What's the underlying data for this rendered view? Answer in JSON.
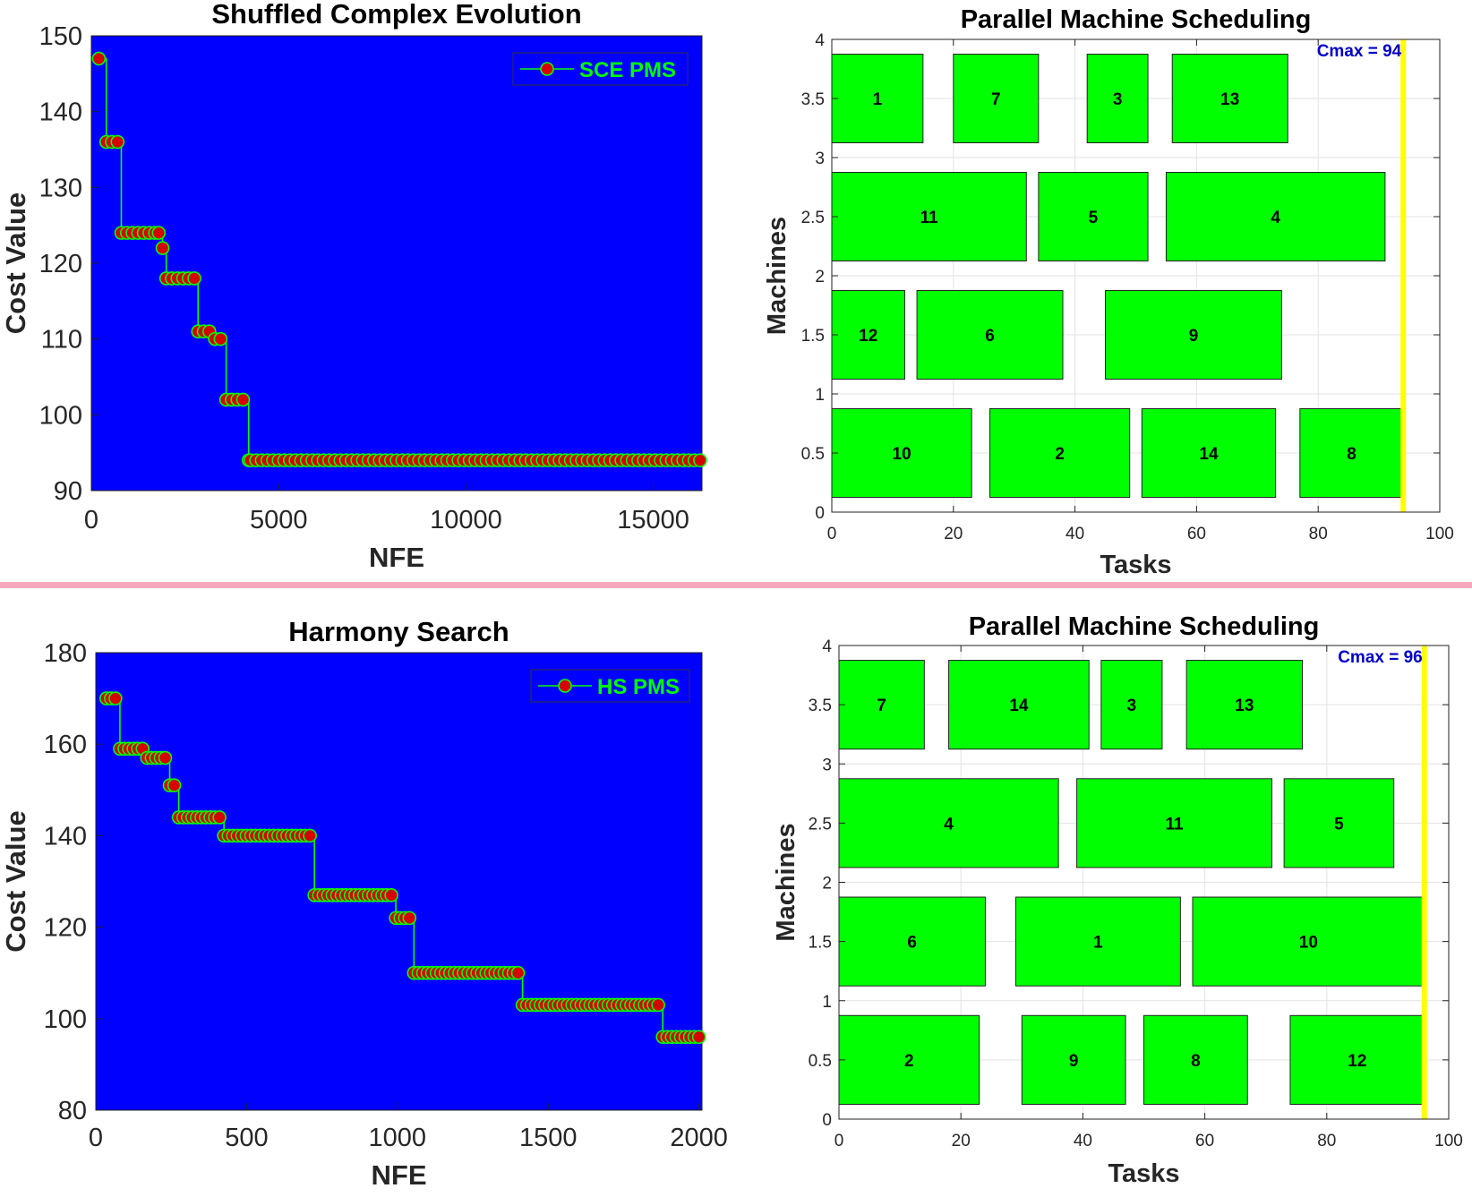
{
  "colors": {
    "convergence_bg": "#0000ff",
    "convergence_line": "#00ff00",
    "marker_face": "#d50000",
    "marker_edge": "#00ff00",
    "legend_text": "#00ff00",
    "legend_border": "#333333",
    "task_fill": "#00ff00",
    "task_stroke": "#222222",
    "cmax_line": "#ffff00",
    "cmax_text": "#0000c8",
    "separator": "#f4a7bd",
    "grid": "#e3e3e3"
  },
  "chart_data": [
    {
      "type": "line",
      "title": "Shuffled Complex Evolution",
      "xlabel": "NFE",
      "ylabel": "Cost Value",
      "xlim": [
        0,
        16300
      ],
      "ylim": [
        90,
        150
      ],
      "xticks": [
        0,
        5000,
        10000,
        15000
      ],
      "yticks": [
        90,
        100,
        110,
        120,
        130,
        140,
        150
      ],
      "grid": false,
      "legend_position": "top-right",
      "series": [
        {
          "name": "SCE PMS",
          "x": [
            200,
            400,
            550,
            700,
            800,
            950,
            1100,
            1250,
            1400,
            1550,
            1700,
            1800,
            1900,
            2000,
            2150,
            2300,
            2450,
            2600,
            2750,
            2850,
            3000,
            3150,
            3300,
            3450,
            3600,
            3750,
            3900,
            4050,
            4200,
            4250,
            4400,
            4550,
            4700,
            4850,
            5000,
            5150,
            5300,
            5450,
            5600,
            5750,
            5900,
            6050,
            6200,
            6350,
            6500,
            6650,
            6800,
            6950,
            7100,
            7250,
            7400,
            7550,
            7700,
            7850,
            8000,
            8150,
            8300,
            8450,
            8600,
            8750,
            8900,
            9050,
            9200,
            9350,
            9500,
            9650,
            9800,
            9950,
            10100,
            10250,
            10400,
            10550,
            10700,
            10850,
            11000,
            11150,
            11300,
            11450,
            11600,
            11750,
            11900,
            12050,
            12200,
            12350,
            12500,
            12650,
            12800,
            12950,
            13100,
            13250,
            13400,
            13550,
            13700,
            13850,
            14000,
            14150,
            14300,
            14450,
            14600,
            14750,
            14900,
            15050,
            15200,
            15350,
            15500,
            15650,
            15800,
            15950,
            16100,
            16250
          ],
          "values": [
            147,
            136,
            136,
            136,
            124,
            124,
            124,
            124,
            124,
            124,
            124,
            124,
            122,
            118,
            118,
            118,
            118,
            118,
            118,
            111,
            111,
            111,
            110,
            110,
            102,
            102,
            102,
            102,
            94,
            94,
            94,
            94,
            94,
            94,
            94,
            94,
            94,
            94,
            94,
            94,
            94,
            94,
            94,
            94,
            94,
            94,
            94,
            94,
            94,
            94,
            94,
            94,
            94,
            94,
            94,
            94,
            94,
            94,
            94,
            94,
            94,
            94,
            94,
            94,
            94,
            94,
            94,
            94,
            94,
            94,
            94,
            94,
            94,
            94,
            94,
            94,
            94,
            94,
            94,
            94,
            94,
            94,
            94,
            94,
            94,
            94,
            94,
            94,
            94,
            94,
            94,
            94,
            94,
            94,
            94,
            94,
            94,
            94,
            94,
            94,
            94,
            94,
            94,
            94,
            94,
            94,
            94,
            94,
            94,
            94
          ]
        }
      ]
    },
    {
      "type": "gantt",
      "title": "Parallel Machine Scheduling",
      "xlabel": "Tasks",
      "ylabel": "Machines",
      "xlim": [
        0,
        100
      ],
      "ylim": [
        0,
        4
      ],
      "xticks": [
        0,
        20,
        40,
        60,
        80,
        100
      ],
      "yticks": [
        0,
        0.5,
        1,
        1.5,
        2,
        2.5,
        3,
        3.5,
        4
      ],
      "grid": true,
      "cmax": 94,
      "cmax_label": "Cmax = 94",
      "tasks": [
        {
          "label": "1",
          "machine": 4,
          "start": 0,
          "end": 15
        },
        {
          "label": "7",
          "machine": 4,
          "start": 20,
          "end": 34
        },
        {
          "label": "3",
          "machine": 4,
          "start": 42,
          "end": 52
        },
        {
          "label": "13",
          "machine": 4,
          "start": 56,
          "end": 75
        },
        {
          "label": "11",
          "machine": 3,
          "start": 0,
          "end": 32
        },
        {
          "label": "5",
          "machine": 3,
          "start": 34,
          "end": 52
        },
        {
          "label": "4",
          "machine": 3,
          "start": 55,
          "end": 91
        },
        {
          "label": "12",
          "machine": 2,
          "start": 0,
          "end": 12
        },
        {
          "label": "6",
          "machine": 2,
          "start": 14,
          "end": 38
        },
        {
          "label": "9",
          "machine": 2,
          "start": 45,
          "end": 74
        },
        {
          "label": "10",
          "machine": 1,
          "start": 0,
          "end": 23
        },
        {
          "label": "2",
          "machine": 1,
          "start": 26,
          "end": 49
        },
        {
          "label": "14",
          "machine": 1,
          "start": 51,
          "end": 73
        },
        {
          "label": "8",
          "machine": 1,
          "start": 77,
          "end": 94
        }
      ]
    },
    {
      "type": "line",
      "title": "Harmony Search",
      "xlabel": "NFE",
      "ylabel": "Cost Value",
      "xlim": [
        0,
        2010
      ],
      "ylim": [
        80,
        180
      ],
      "xticks": [
        0,
        500,
        1000,
        1500,
        2000
      ],
      "yticks": [
        80,
        100,
        120,
        140,
        160,
        180
      ],
      "grid": false,
      "legend_position": "top-right",
      "series": [
        {
          "name": "HS PMS",
          "x": [
            35,
            50,
            65,
            80,
            95,
            110,
            125,
            140,
            155,
            170,
            185,
            200,
            215,
            230,
            245,
            260,
            275,
            290,
            305,
            320,
            335,
            350,
            365,
            380,
            395,
            410,
            425,
            440,
            455,
            470,
            485,
            500,
            515,
            530,
            545,
            560,
            575,
            590,
            605,
            620,
            635,
            650,
            665,
            680,
            695,
            710,
            725,
            740,
            755,
            770,
            785,
            800,
            815,
            830,
            845,
            860,
            875,
            890,
            905,
            920,
            935,
            950,
            965,
            980,
            995,
            1010,
            1025,
            1040,
            1055,
            1070,
            1085,
            1100,
            1115,
            1130,
            1145,
            1160,
            1175,
            1190,
            1205,
            1220,
            1235,
            1250,
            1265,
            1280,
            1295,
            1310,
            1325,
            1340,
            1355,
            1370,
            1385,
            1400,
            1415,
            1430,
            1445,
            1460,
            1475,
            1490,
            1505,
            1520,
            1535,
            1550,
            1565,
            1580,
            1595,
            1610,
            1625,
            1640,
            1655,
            1670,
            1685,
            1700,
            1715,
            1730,
            1745,
            1760,
            1775,
            1790,
            1805,
            1820,
            1835,
            1850,
            1865,
            1880,
            1895,
            1910,
            1925,
            1940,
            1955,
            1970,
            1985,
            2000
          ],
          "values": [
            170,
            170,
            170,
            159,
            159,
            159,
            159,
            159,
            159,
            157,
            157,
            157,
            157,
            157,
            151,
            151,
            144,
            144,
            144,
            144,
            144,
            144,
            144,
            144,
            144,
            144,
            140,
            140,
            140,
            140,
            140,
            140,
            140,
            140,
            140,
            140,
            140,
            140,
            140,
            140,
            140,
            140,
            140,
            140,
            140,
            140,
            127,
            127,
            127,
            127,
            127,
            127,
            127,
            127,
            127,
            127,
            127,
            127,
            127,
            127,
            127,
            127,
            127,
            127,
            122,
            122,
            122,
            122,
            110,
            110,
            110,
            110,
            110,
            110,
            110,
            110,
            110,
            110,
            110,
            110,
            110,
            110,
            110,
            110,
            110,
            110,
            110,
            110,
            110,
            110,
            110,
            110,
            103,
            103,
            103,
            103,
            103,
            103,
            103,
            103,
            103,
            103,
            103,
            103,
            103,
            103,
            103,
            103,
            103,
            103,
            103,
            103,
            103,
            103,
            103,
            103,
            103,
            103,
            103,
            103,
            103,
            103,
            103,
            96,
            96,
            96,
            96,
            96,
            96,
            96,
            96,
            96
          ]
        }
      ]
    },
    {
      "type": "gantt",
      "title": "Parallel Machine Scheduling",
      "xlabel": "Tasks",
      "ylabel": "Machines",
      "xlim": [
        0,
        100
      ],
      "ylim": [
        0,
        4
      ],
      "xticks": [
        0,
        20,
        40,
        60,
        80,
        100
      ],
      "yticks": [
        0,
        0.5,
        1,
        1.5,
        2,
        2.5,
        3,
        3.5,
        4
      ],
      "grid": true,
      "cmax": 96,
      "cmax_label": "Cmax = 96",
      "tasks": [
        {
          "label": "7",
          "machine": 4,
          "start": 0,
          "end": 14
        },
        {
          "label": "14",
          "machine": 4,
          "start": 18,
          "end": 41
        },
        {
          "label": "3",
          "machine": 4,
          "start": 43,
          "end": 53
        },
        {
          "label": "13",
          "machine": 4,
          "start": 57,
          "end": 76
        },
        {
          "label": "4",
          "machine": 3,
          "start": 0,
          "end": 36
        },
        {
          "label": "11",
          "machine": 3,
          "start": 39,
          "end": 71
        },
        {
          "label": "5",
          "machine": 3,
          "start": 73,
          "end": 91
        },
        {
          "label": "6",
          "machine": 2,
          "start": 0,
          "end": 24
        },
        {
          "label": "1",
          "machine": 2,
          "start": 29,
          "end": 56
        },
        {
          "label": "10",
          "machine": 2,
          "start": 58,
          "end": 96
        },
        {
          "label": "2",
          "machine": 1,
          "start": 0,
          "end": 23
        },
        {
          "label": "9",
          "machine": 1,
          "start": 30,
          "end": 47
        },
        {
          "label": "8",
          "machine": 1,
          "start": 50,
          "end": 67
        },
        {
          "label": "12",
          "machine": 1,
          "start": 74,
          "end": 96
        }
      ]
    }
  ]
}
